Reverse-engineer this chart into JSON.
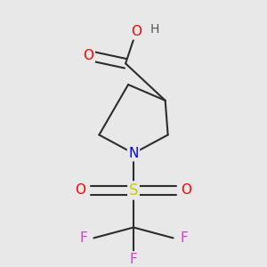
{
  "bg_color": "#e8e8e8",
  "bond_color": "#2d2d2d",
  "atom_colors": {
    "O": "#ff0000",
    "N": "#0000ff",
    "S": "#cccc00",
    "F": "#cc44cc",
    "H": "#555555",
    "C": "#2d2d2d"
  },
  "bond_width": 1.5,
  "font_size": 10
}
